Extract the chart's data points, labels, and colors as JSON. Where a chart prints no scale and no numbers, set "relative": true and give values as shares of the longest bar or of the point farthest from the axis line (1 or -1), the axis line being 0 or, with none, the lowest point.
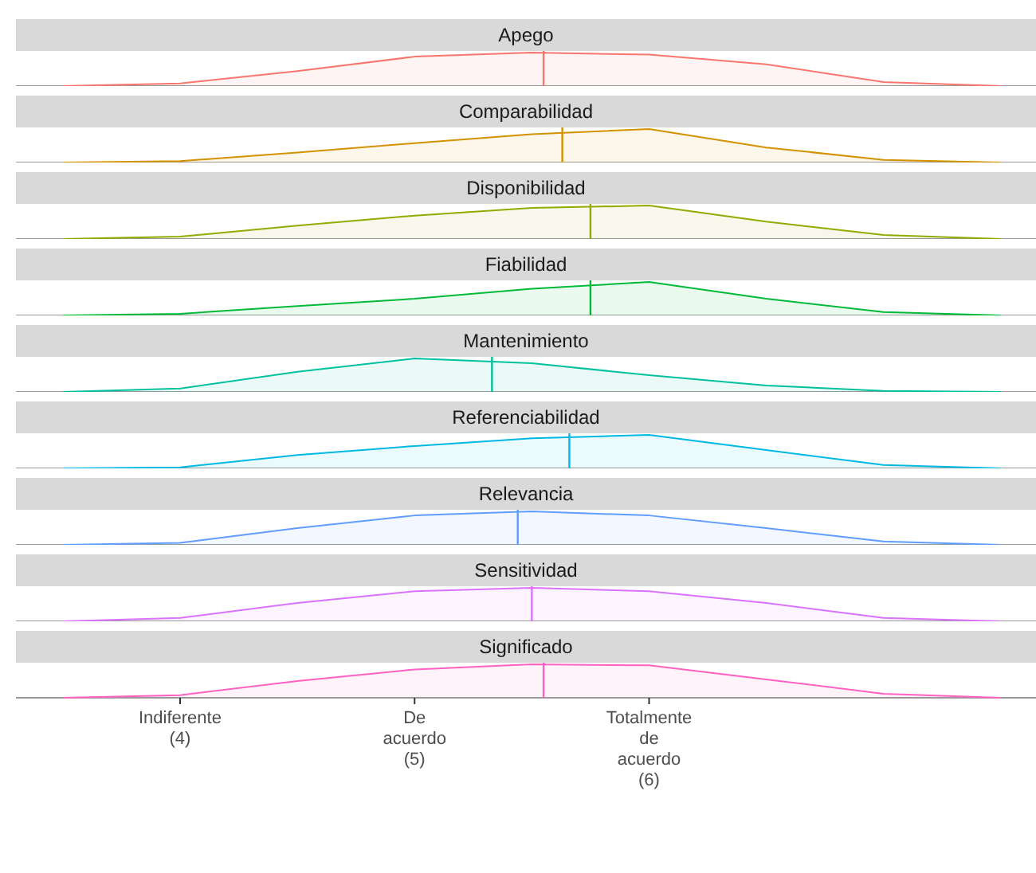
{
  "chart_data": [
    {
      "type": "area",
      "title": "Apego",
      "relative": true,
      "tick_labels": false,
      "xlim": [
        3.3,
        7.65
      ],
      "x": [
        3.5,
        4,
        4.5,
        5,
        5.5,
        6,
        6.5,
        7,
        7.5
      ],
      "series": [
        {
          "color": "#f8766d",
          "values": [
            0,
            0.08,
            0.45,
            0.88,
            1,
            0.94,
            0.65,
            0.12,
            0
          ]
        }
      ],
      "ref_lines": [
        {
          "axis": "x",
          "value": 5.55,
          "color": "#f8766d"
        }
      ]
    },
    {
      "type": "area",
      "title": "Comparabilidad",
      "relative": true,
      "tick_labels": false,
      "xlim": [
        3.3,
        7.65
      ],
      "x": [
        3.5,
        4,
        4.5,
        5,
        5.5,
        6,
        6.5,
        7,
        7.5
      ],
      "series": [
        {
          "color": "#d39200",
          "values": [
            0,
            0.04,
            0.3,
            0.58,
            0.85,
            1,
            0.45,
            0.08,
            0
          ]
        }
      ],
      "ref_lines": [
        {
          "axis": "x",
          "value": 5.63,
          "color": "#d39200"
        }
      ]
    },
    {
      "type": "area",
      "title": "Disponibilidad",
      "relative": true,
      "tick_labels": false,
      "xlim": [
        3.3,
        7.65
      ],
      "x": [
        3.5,
        4,
        4.5,
        5,
        5.5,
        6,
        6.5,
        7,
        7.5
      ],
      "series": [
        {
          "color": "#93aa00",
          "values": [
            0,
            0.07,
            0.4,
            0.7,
            0.93,
            1,
            0.52,
            0.12,
            0
          ]
        }
      ],
      "ref_lines": [
        {
          "axis": "x",
          "value": 5.75,
          "color": "#93aa00"
        }
      ]
    },
    {
      "type": "area",
      "title": "Fiabilidad",
      "relative": true,
      "tick_labels": false,
      "xlim": [
        3.3,
        7.65
      ],
      "x": [
        3.5,
        4,
        4.5,
        5,
        5.5,
        6,
        6.5,
        7,
        7.5
      ],
      "series": [
        {
          "color": "#00ba38",
          "values": [
            0,
            0.05,
            0.28,
            0.5,
            0.8,
            1,
            0.5,
            0.1,
            0
          ]
        }
      ],
      "ref_lines": [
        {
          "axis": "x",
          "value": 5.75,
          "color": "#00ba38"
        }
      ]
    },
    {
      "type": "area",
      "title": "Mantenimiento",
      "relative": true,
      "tick_labels": false,
      "xlim": [
        3.3,
        7.65
      ],
      "x": [
        3.5,
        4,
        4.5,
        5,
        5.5,
        6,
        6.5,
        7,
        7.5
      ],
      "series": [
        {
          "color": "#00c19f",
          "values": [
            0,
            0.1,
            0.6,
            1,
            0.86,
            0.5,
            0.19,
            0.03,
            0
          ]
        }
      ],
      "ref_lines": [
        {
          "axis": "x",
          "value": 5.33,
          "color": "#00c19f"
        }
      ]
    },
    {
      "type": "area",
      "title": "Referenciabilidad",
      "relative": true,
      "tick_labels": false,
      "xlim": [
        3.3,
        7.65
      ],
      "x": [
        3.5,
        4,
        4.5,
        5,
        5.5,
        6,
        6.5,
        7,
        7.5
      ],
      "series": [
        {
          "color": "#00b9e3",
          "values": [
            0,
            0.03,
            0.4,
            0.67,
            0.9,
            1,
            0.55,
            0.1,
            0
          ]
        }
      ],
      "ref_lines": [
        {
          "axis": "x",
          "value": 5.66,
          "color": "#00b9e3"
        }
      ]
    },
    {
      "type": "area",
      "title": "Relevancia",
      "relative": true,
      "tick_labels": false,
      "xlim": [
        3.3,
        7.65
      ],
      "x": [
        3.5,
        4,
        4.5,
        5,
        5.5,
        6,
        6.5,
        7,
        7.5
      ],
      "series": [
        {
          "color": "#619cff",
          "values": [
            0,
            0.06,
            0.5,
            0.88,
            1,
            0.88,
            0.5,
            0.1,
            0
          ]
        }
      ],
      "ref_lines": [
        {
          "axis": "x",
          "value": 5.44,
          "color": "#619cff"
        }
      ]
    },
    {
      "type": "area",
      "title": "Sensitividad",
      "relative": true,
      "tick_labels": false,
      "xlim": [
        3.3,
        7.65
      ],
      "x": [
        3.5,
        4,
        4.5,
        5,
        5.5,
        6,
        6.5,
        7,
        7.5
      ],
      "series": [
        {
          "color": "#db72fb",
          "values": [
            0,
            0.1,
            0.55,
            0.9,
            1,
            0.9,
            0.55,
            0.1,
            0
          ]
        }
      ],
      "ref_lines": [
        {
          "axis": "x",
          "value": 5.5,
          "color": "#db72fb"
        }
      ]
    },
    {
      "type": "area",
      "title": "Significado",
      "relative": true,
      "tick_labels": "x",
      "xlim": [
        3.3,
        7.65
      ],
      "xticks": [
        {
          "value": 4,
          "label": "Indiferente\n(4)"
        },
        {
          "value": 5,
          "label": "De\nacuerdo\n(5)"
        },
        {
          "value": 6,
          "label": "Totalmente\nde\nacuerdo\n(6)"
        }
      ],
      "x": [
        3.5,
        4,
        4.5,
        5,
        5.5,
        6,
        6.5,
        7,
        7.5
      ],
      "series": [
        {
          "color": "#ff61c3",
          "values": [
            0,
            0.08,
            0.5,
            0.85,
            1,
            0.97,
            0.55,
            0.12,
            0
          ]
        }
      ],
      "ref_lines": [
        {
          "axis": "x",
          "value": 5.55,
          "color": "#ff61c3"
        }
      ]
    }
  ]
}
